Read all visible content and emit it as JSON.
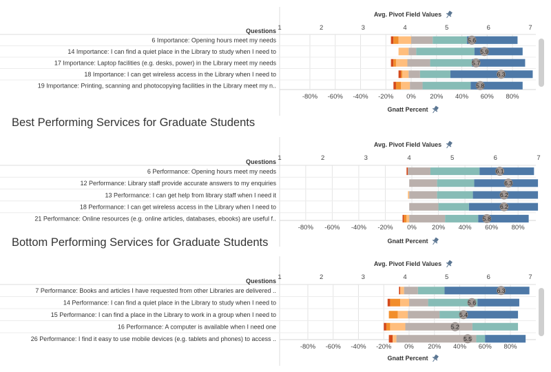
{
  "colors": {
    "red": "#d44a1b",
    "orange": "#f28e2b",
    "light_orange": "#ffbe7d",
    "gray": "#bab0ac",
    "teal": "#86bcb6",
    "light_blue": "#a0cbe8",
    "blue": "#4e79a7",
    "avg_circle": "#a39a96",
    "grid": "#e4e4e4",
    "axis": "#d0d0d0"
  },
  "chart_data": [
    {
      "type": "bar",
      "title": "",
      "rows_header": "Questions",
      "top_axis_title": "Avg. Pivot Field Values",
      "top_axis_icon": "pin-icon",
      "top_axis_range": [
        1,
        7
      ],
      "top_axis_ticks": [
        "1",
        "2",
        "3",
        "4",
        "5",
        "6",
        "7"
      ],
      "bottom_axis_title": "Gnatt Percent",
      "bottom_axis_icon": "pin-icon",
      "bottom_axis_ticks": [
        "-80%",
        "-60%",
        "-40%",
        "-20%",
        "0%",
        "20%",
        "40%",
        "60%",
        "80%"
      ],
      "bottom_axis_values": [
        -80,
        -60,
        -40,
        -20,
        0,
        20,
        40,
        60,
        80
      ],
      "questions": [
        "6 Importance: Opening hours meet my needs",
        "14 Importance: I can find a quiet place in the Library to study when I need to",
        "17 Importance: Laptop facilities (e.g. desks, power) in the Library meet my needs",
        "18 Importance: I can get wireless access in the Library when I need to",
        "19 Importance: Printing, scanning and photocopying facilities in the Library meet my n.."
      ],
      "averages": [
        5.6,
        5.9,
        5.7,
        6.3,
        5.8
      ],
      "average_labels": [
        "5.6",
        "5.9",
        "5.7",
        "6.3",
        "5.8"
      ],
      "series_order": [
        "red",
        "orange",
        "light_orange",
        "gray",
        "teal",
        "light_blue",
        "blue"
      ],
      "series": [
        [
          -16,
          -14,
          -10,
          0,
          17,
          44,
          84
        ],
        [
          -10,
          -10,
          -10,
          -2,
          4,
          50,
          88
        ],
        [
          -16,
          -14,
          -12,
          -3,
          15,
          48,
          90
        ],
        [
          -10,
          -8,
          -7,
          -2,
          7,
          31,
          96
        ],
        [
          -14,
          -12,
          -8,
          -1,
          9,
          47,
          88
        ]
      ]
    },
    {
      "type": "bar",
      "title": "Best Performing Services for Graduate Students",
      "rows_header": "Questions",
      "top_axis_title": "Avg. Pivot Field Values",
      "top_axis_icon": "pin-icon",
      "top_axis_range": [
        1,
        7
      ],
      "top_axis_ticks": [
        "1",
        "2",
        "3",
        "4",
        "5",
        "6",
        "7"
      ],
      "bottom_axis_title": "Gnatt Percent",
      "bottom_axis_icon": "pin-icon",
      "bottom_axis_ticks": [
        "-80%",
        "-60%",
        "-40%",
        "-20%",
        "0%",
        "20%",
        "40%",
        "60%",
        "80%"
      ],
      "bottom_axis_values": [
        -80,
        -60,
        -40,
        -20,
        0,
        20,
        40,
        60,
        80
      ],
      "questions": [
        "6 Performance: Opening hours meet my needs",
        "12 Performance: Library staff provide accurate answers to my enquiries",
        "13 Performance: I can get help from library staff when I need it",
        "18 Performance: I can get wireless access in the Library when I need to",
        "21 Performance: Online resources (e.g. online articles, databases, ebooks) are useful f.."
      ],
      "averages": [
        6.1,
        6.3,
        6.2,
        6.2,
        5.8
      ],
      "average_labels": [
        "6.1",
        "6.3",
        "6.2",
        "6.2",
        "5.8"
      ],
      "series_order": [
        "red",
        "orange",
        "light_orange",
        "gray",
        "teal",
        "light_blue",
        "blue"
      ],
      "series": [
        [
          -4,
          -3,
          -3,
          -3,
          14,
          51,
          92
        ],
        [
          -2,
          -2,
          -2,
          -2,
          19,
          47,
          95
        ],
        [
          -3,
          -3,
          -3,
          -2,
          19,
          46,
          95
        ],
        [
          -2,
          -2,
          -2,
          -2,
          20,
          43,
          95
        ],
        [
          -7,
          -6,
          -4,
          -2,
          25,
          50,
          88
        ]
      ]
    },
    {
      "type": "bar",
      "title": "Bottom Performing Services for Graduate Students",
      "rows_header": "Questions",
      "top_axis_title": "Avg. Pivot Field Values",
      "top_axis_icon": "pin-icon",
      "top_axis_range": [
        1,
        7
      ],
      "top_axis_ticks": [
        "1",
        "2",
        "3",
        "4",
        "5",
        "6",
        "7"
      ],
      "bottom_axis_title": "Gnatt Percent",
      "bottom_axis_icon": "pin-icon",
      "bottom_axis_ticks": [
        "-80%",
        "-60%",
        "-40%",
        "-20%",
        "0%",
        "20%",
        "40%",
        "60%",
        "80%"
      ],
      "bottom_axis_values": [
        -80,
        -60,
        -40,
        -20,
        0,
        20,
        40,
        60,
        80
      ],
      "questions": [
        "7 Performance: Books and articles I have requested from other Libraries are delivered ..",
        "14 Performance: I can find a quiet place in the Library to study when I need to",
        "15 Performance: I can find a place in the Library to work in a group when I need to",
        "16 Performance: A computer is available when I need one",
        "26 Performance: I find it easy to use mobile devices (e.g. tablets and phones) to access .."
      ],
      "averages": [
        6.3,
        5.6,
        5.4,
        5.2,
        5.5
      ],
      "average_labels": [
        "6.3",
        "5.6",
        "5.4",
        "5.2",
        "5.5"
      ],
      "series_order": [
        "red",
        "orange",
        "light_orange",
        "gray",
        "teal",
        "light_blue",
        "blue"
      ],
      "series": [
        [
          -8,
          -7,
          -7,
          -4,
          7,
          28,
          95
        ],
        [
          -17,
          -15,
          -7,
          0,
          15,
          54,
          87
        ],
        [
          -16,
          -16,
          -9,
          -1,
          24,
          45,
          86
        ],
        [
          -20,
          -18,
          -15,
          -3,
          50,
          86,
          86
        ],
        [
          -16,
          -13,
          -13,
          -10,
          53,
          60,
          92
        ]
      ]
    }
  ]
}
